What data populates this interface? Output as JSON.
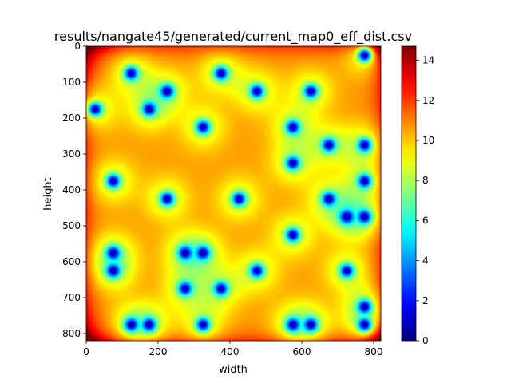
{
  "chart_data": {
    "type": "heatmap",
    "title": "results/nangate45/generated/current_map0_eff_dist.csv",
    "xlabel": "width",
    "ylabel": "height",
    "xlim": [
      0,
      820
    ],
    "ylim": [
      820,
      0
    ],
    "x_ticks": [
      0,
      200,
      400,
      600,
      800
    ],
    "y_ticks": [
      0,
      100,
      200,
      300,
      400,
      500,
      600,
      700,
      800
    ],
    "colorbar": {
      "colormap": "jet",
      "range": [
        0,
        14.7
      ],
      "ticks": [
        0,
        2,
        4,
        6,
        8,
        10,
        12,
        14
      ]
    },
    "grid": false,
    "description": "Effective distance map; dark-blue minima (~0) at source points, rising to ~14.7 at the corners",
    "sources": [
      [
        775,
        25
      ],
      [
        125,
        75
      ],
      [
        375,
        75
      ],
      [
        225,
        125
      ],
      [
        475,
        125
      ],
      [
        625,
        125
      ],
      [
        25,
        175
      ],
      [
        175,
        175
      ],
      [
        325,
        225
      ],
      [
        575,
        225
      ],
      [
        675,
        275
      ],
      [
        775,
        275
      ],
      [
        575,
        325
      ],
      [
        75,
        375
      ],
      [
        775,
        375
      ],
      [
        225,
        425
      ],
      [
        425,
        425
      ],
      [
        675,
        425
      ],
      [
        725,
        475
      ],
      [
        775,
        475
      ],
      [
        575,
        525
      ],
      [
        75,
        575
      ],
      [
        275,
        575
      ],
      [
        325,
        575
      ],
      [
        75,
        625
      ],
      [
        475,
        625
      ],
      [
        725,
        625
      ],
      [
        275,
        675
      ],
      [
        375,
        675
      ],
      [
        775,
        725
      ],
      [
        125,
        775
      ],
      [
        175,
        775
      ],
      [
        325,
        775
      ],
      [
        575,
        775
      ],
      [
        625,
        775
      ],
      [
        775,
        775
      ]
    ]
  }
}
